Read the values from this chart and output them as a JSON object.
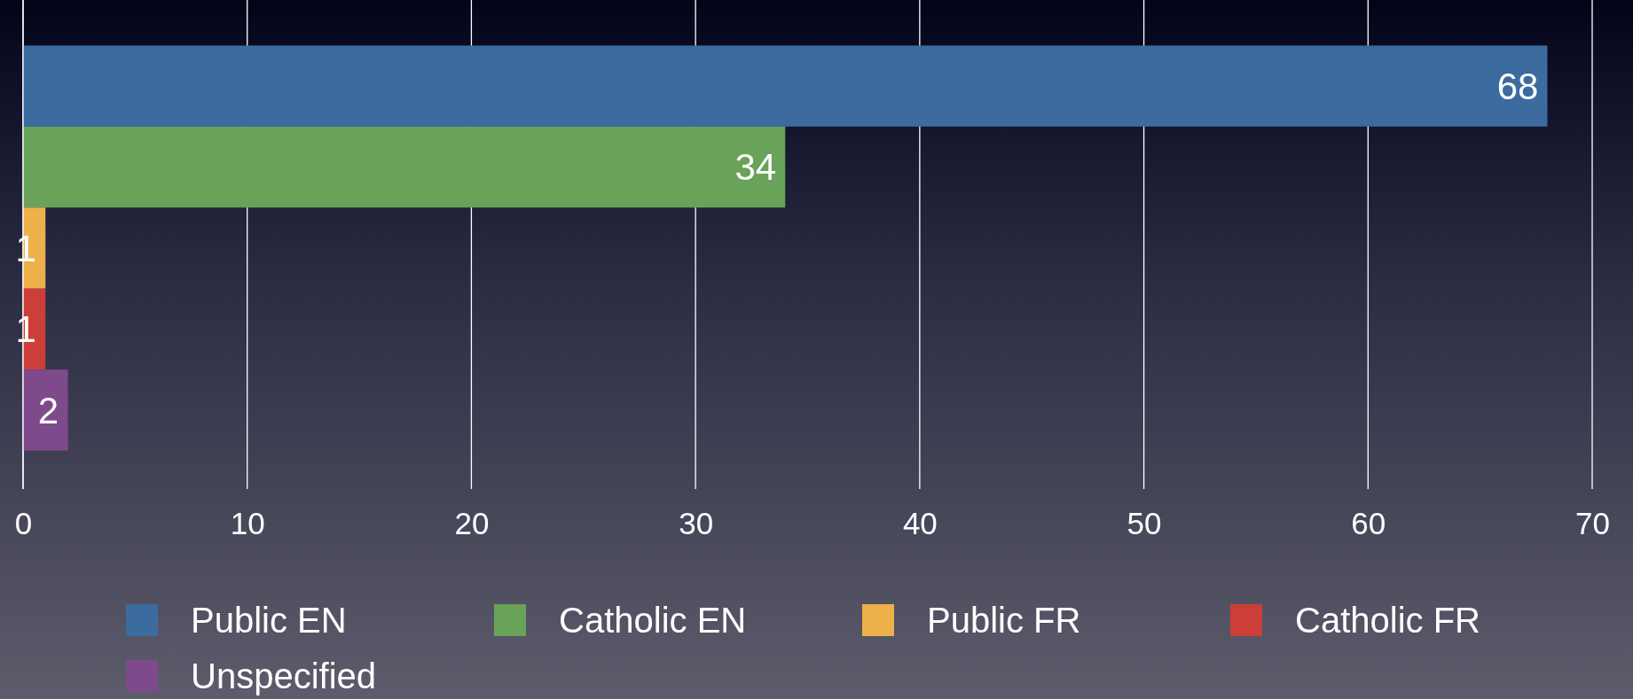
{
  "chart_data": {
    "type": "bar",
    "orientation": "horizontal",
    "categories": [
      null
    ],
    "series": [
      {
        "name": "Public EN",
        "color": "#3b6b9f",
        "values": [
          68
        ]
      },
      {
        "name": "Catholic EN",
        "color": "#69a259",
        "values": [
          34
        ]
      },
      {
        "name": "Public FR",
        "color": "#eeb04a",
        "values": [
          1
        ]
      },
      {
        "name": "Catholic FR",
        "color": "#cc3e38",
        "values": [
          1
        ]
      },
      {
        "name": "Unspecified",
        "color": "#7f4a8c",
        "values": [
          2
        ]
      }
    ],
    "xlim": [
      0,
      70
    ],
    "xticks": [
      0,
      10,
      20,
      30,
      40,
      50,
      60,
      70
    ],
    "grid": "x",
    "data_labels": true,
    "legend": "bottom"
  }
}
